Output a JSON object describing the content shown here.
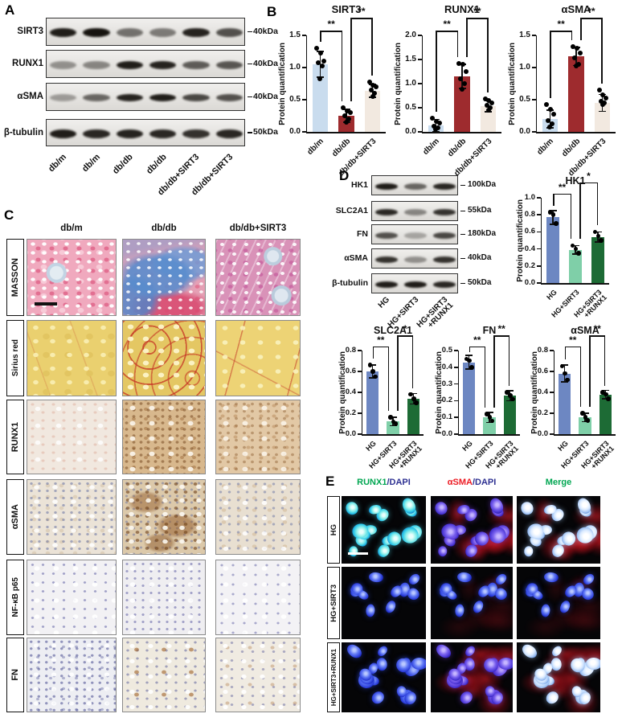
{
  "panels": {
    "a": "A",
    "b": "B",
    "c": "C",
    "d": "D",
    "e": "E"
  },
  "panel_a": {
    "rows": [
      {
        "protein": "SIRT3",
        "mw": "40kDa",
        "bands": [
          0.95,
          1.0,
          0.55,
          0.5,
          0.92,
          0.7
        ]
      },
      {
        "protein": "RUNX1",
        "mw": "40kDa",
        "bands": [
          0.4,
          0.45,
          0.95,
          0.92,
          0.65,
          0.68
        ]
      },
      {
        "protein": "αSMA",
        "mw": "40kDa",
        "bands": [
          0.35,
          0.6,
          0.92,
          0.95,
          0.75,
          0.7
        ]
      },
      {
        "protein": "β-tubulin",
        "mw": "50kDa",
        "bands": [
          0.95,
          0.9,
          0.92,
          0.9,
          0.85,
          0.9
        ]
      }
    ],
    "lanes": [
      "db/m",
      "db/m",
      "db/db",
      "db/db",
      "db/db+SIRT3",
      "db/db+SIRT3"
    ]
  },
  "panel_c": {
    "col_headers": [
      "db/m",
      "db/db",
      "db/db+SIRT3"
    ],
    "row_labels": [
      "MASSON",
      "Sirius red",
      "RUNX1",
      "αSMA",
      "NF-κB p65",
      "FN"
    ]
  },
  "panel_d": {
    "rows": [
      {
        "protein": "HK1",
        "mw": "100kDa",
        "bands": [
          0.95,
          0.6,
          0.9
        ]
      },
      {
        "protein": "SLC2A1",
        "mw": "55kDa",
        "bands": [
          0.9,
          0.45,
          0.85
        ]
      },
      {
        "protein": "FN",
        "mw": "180kDa",
        "bands": [
          0.7,
          0.3,
          0.75
        ]
      },
      {
        "protein": "αSMA",
        "mw": "40kDa",
        "bands": [
          0.85,
          0.4,
          0.85
        ]
      },
      {
        "protein": "β-tubulin",
        "mw": "50kDa",
        "bands": [
          0.95,
          0.95,
          0.9
        ]
      }
    ],
    "lanes": [
      "HG",
      "HG+SIRT3",
      "HG+SIRT3\n+RUNX1"
    ]
  },
  "panel_e": {
    "col_headers": [
      {
        "parts": [
          {
            "text": "RUNX1",
            "color": "#00A651"
          },
          {
            "text": "/DAPI",
            "color": "#2E3192"
          }
        ]
      },
      {
        "parts": [
          {
            "text": "αSMA",
            "color": "#ED1C24"
          },
          {
            "text": "/DAPI",
            "color": "#2E3192"
          }
        ]
      },
      {
        "parts": [
          {
            "text": "Merge",
            "color": "#00A651"
          }
        ]
      }
    ],
    "row_labels": [
      "HG",
      "HG+SIRT3",
      "HG+SIRT3+RUNX1"
    ]
  },
  "chart_data": [
    {
      "panel": "B",
      "type": "bar",
      "title": "SIRT3",
      "ylabel": "Protein quantification",
      "ylim": [
        0,
        1.5
      ],
      "yticks": [
        0,
        0.5,
        1.0,
        1.5
      ],
      "categories": [
        "db/m",
        "db/db",
        "db/db+SIRT3"
      ],
      "values": [
        1.05,
        0.25,
        0.64
      ],
      "errors": [
        0.2,
        0.1,
        0.1
      ],
      "points": [
        [
          1.3,
          1.22,
          1.1,
          1.08,
          1.02,
          0.82
        ],
        [
          0.38,
          0.33,
          0.3,
          0.25,
          0.2,
          0.15
        ],
        [
          0.78,
          0.72,
          0.7,
          0.65,
          0.6,
          0.55
        ]
      ],
      "colors": [
        "#c9dcee",
        "#9e2b2e",
        "#f2e9e0"
      ],
      "sig": [
        {
          "a": 0,
          "b": 1,
          "label": "**"
        },
        {
          "a": 1,
          "b": 2,
          "label": "**"
        }
      ]
    },
    {
      "panel": "B",
      "type": "bar",
      "title": "RUNX1",
      "ylabel": "Protein quantification",
      "ylim": [
        0,
        2.0
      ],
      "yticks": [
        0,
        0.5,
        1.0,
        1.5,
        2.0
      ],
      "categories": [
        "db/m",
        "db/db",
        "db/db+SIRT3"
      ],
      "values": [
        0.13,
        1.15,
        0.53
      ],
      "errors": [
        0.13,
        0.25,
        0.11
      ],
      "points": [
        [
          0.28,
          0.22,
          0.18,
          0.12,
          0.08,
          0.05
        ],
        [
          1.42,
          1.4,
          1.25,
          1.1,
          1.0,
          0.88
        ],
        [
          0.68,
          0.65,
          0.6,
          0.55,
          0.5,
          0.45
        ]
      ],
      "colors": [
        "#c9dcee",
        "#9e2b2e",
        "#f2e9e0"
      ],
      "sig": [
        {
          "a": 0,
          "b": 1,
          "label": "**"
        },
        {
          "a": 1,
          "b": 2,
          "label": "**"
        }
      ]
    },
    {
      "panel": "B",
      "type": "bar",
      "title": "αSMA",
      "ylabel": "Protein quantification",
      "ylim": [
        0,
        1.5
      ],
      "yticks": [
        0,
        0.5,
        1.0,
        1.5
      ],
      "categories": [
        "db/m",
        "db/db",
        "db/db+SIRT3"
      ],
      "values": [
        0.2,
        1.17,
        0.45
      ],
      "errors": [
        0.14,
        0.14,
        0.13
      ],
      "points": [
        [
          0.42,
          0.35,
          0.28,
          0.18,
          0.12,
          0.08
        ],
        [
          1.32,
          1.3,
          1.22,
          1.15,
          1.05,
          1.02
        ],
        [
          0.65,
          0.58,
          0.52,
          0.48,
          0.45,
          0.42
        ]
      ],
      "colors": [
        "#c9dcee",
        "#9e2b2e",
        "#f2e9e0"
      ],
      "sig": [
        {
          "a": 0,
          "b": 1,
          "label": "**"
        },
        {
          "a": 1,
          "b": 2,
          "label": "**"
        }
      ]
    },
    {
      "panel": "D",
      "type": "bar",
      "title": "HK1",
      "ylabel": "Protein quantification",
      "ylim": [
        0,
        1.0
      ],
      "yticks": [
        0,
        0.2,
        0.4,
        0.6,
        0.8,
        1.0
      ],
      "categories": [
        "HG",
        "HG+SIRT3",
        "HG+SIRT3\n+RUNX1"
      ],
      "values": [
        0.77,
        0.39,
        0.54
      ],
      "errors": [
        0.08,
        0.05,
        0.06
      ],
      "points": [
        [
          0.83,
          0.8,
          0.7
        ],
        [
          0.44,
          0.4,
          0.35
        ],
        [
          0.6,
          0.55,
          0.5
        ]
      ],
      "colors": [
        "#6d87c2",
        "#7fcfa8",
        "#1d6b35"
      ],
      "sig": [
        {
          "a": 0,
          "b": 1,
          "label": "**"
        },
        {
          "a": 1,
          "b": 2,
          "label": "*"
        }
      ]
    },
    {
      "panel": "D",
      "type": "bar",
      "title": "SLC2A1",
      "ylabel": "Protein quantification",
      "ylim": [
        0,
        0.8
      ],
      "yticks": [
        0,
        0.2,
        0.4,
        0.6,
        0.8
      ],
      "categories": [
        "HG",
        "HG+SIRT3",
        "HG+SIRT3\n+RUNX1"
      ],
      "values": [
        0.6,
        0.12,
        0.34
      ],
      "errors": [
        0.06,
        0.04,
        0.05
      ],
      "points": [
        [
          0.66,
          0.6,
          0.55
        ],
        [
          0.16,
          0.12,
          0.1
        ],
        [
          0.38,
          0.34,
          0.3
        ]
      ],
      "colors": [
        "#6d87c2",
        "#7fcfa8",
        "#1d6b35"
      ],
      "sig": [
        {
          "a": 0,
          "b": 1,
          "label": "**"
        },
        {
          "a": 1,
          "b": 2,
          "label": "*"
        }
      ]
    },
    {
      "panel": "D",
      "type": "bar",
      "title": "FN",
      "ylabel": "Protein quantification",
      "ylim": [
        0,
        0.5
      ],
      "yticks": [
        0,
        0.1,
        0.2,
        0.3,
        0.4,
        0.5
      ],
      "categories": [
        "HG",
        "HG+SIRT3",
        "HG+SIRT3\n+RUNX1"
      ],
      "values": [
        0.43,
        0.1,
        0.23
      ],
      "errors": [
        0.04,
        0.03,
        0.03
      ],
      "points": [
        [
          0.45,
          0.44,
          0.4
        ],
        [
          0.12,
          0.1,
          0.08
        ],
        [
          0.25,
          0.23,
          0.21
        ]
      ],
      "colors": [
        "#6d87c2",
        "#7fcfa8",
        "#1d6b35"
      ],
      "sig": [
        {
          "a": 0,
          "b": 1,
          "label": "**"
        },
        {
          "a": 1,
          "b": 2,
          "label": "**"
        }
      ]
    },
    {
      "panel": "D",
      "type": "bar",
      "title": "αSMA",
      "ylabel": "Protein quantification",
      "ylim": [
        0,
        0.8
      ],
      "yticks": [
        0,
        0.2,
        0.4,
        0.6,
        0.8
      ],
      "categories": [
        "HG",
        "HG+SIRT3",
        "HG+SIRT3\n+RUNX1"
      ],
      "values": [
        0.58,
        0.16,
        0.38
      ],
      "errors": [
        0.08,
        0.04,
        0.04
      ],
      "points": [
        [
          0.65,
          0.58,
          0.52
        ],
        [
          0.2,
          0.16,
          0.13
        ],
        [
          0.4,
          0.38,
          0.34
        ]
      ],
      "colors": [
        "#6d87c2",
        "#7fcfa8",
        "#1d6b35"
      ],
      "sig": [
        {
          "a": 0,
          "b": 1,
          "label": "**"
        },
        {
          "a": 1,
          "b": 2,
          "label": "**"
        }
      ]
    }
  ]
}
